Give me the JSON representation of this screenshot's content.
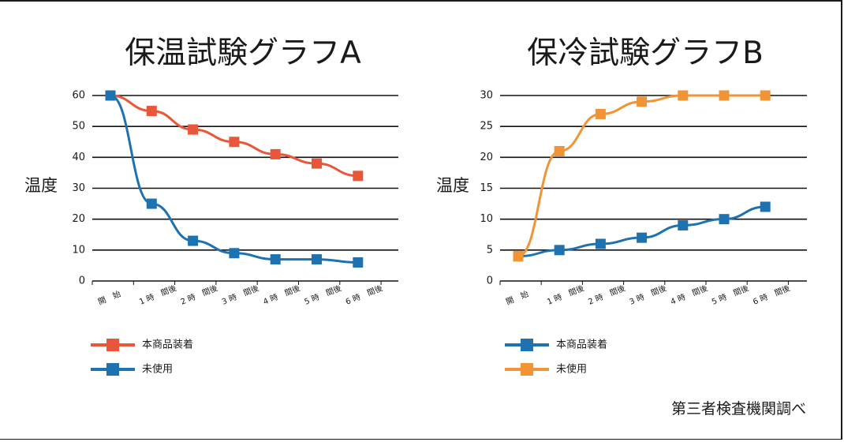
{
  "source_note": "第三者検査機関調べ",
  "chart_data": [
    {
      "type": "line",
      "title": "保温試験グラフA",
      "ylabel": "温度",
      "ylim": [
        0,
        60
      ],
      "yticks": [
        0,
        10,
        20,
        30,
        40,
        50,
        60
      ],
      "categories": [
        "開　始",
        "1 時　間後",
        "2 時　間後",
        "3 時　間後",
        "4 時　間後",
        "5 時　間後",
        "6 時　間後"
      ],
      "grid": true,
      "legend_position": "bottom-left",
      "series": [
        {
          "name": "本商品装着",
          "color": "#e8573a",
          "values": [
            60,
            55,
            49,
            45,
            41,
            38,
            34
          ]
        },
        {
          "name": "未使用",
          "color": "#1f72b0",
          "values": [
            60,
            25,
            13,
            9,
            7,
            7,
            6
          ]
        }
      ]
    },
    {
      "type": "line",
      "title": "保冷試験グラフB",
      "ylabel": "温度",
      "ylim": [
        0,
        30
      ],
      "yticks": [
        0,
        5,
        10,
        15,
        20,
        25,
        30
      ],
      "categories": [
        "開　始",
        "1 時　間後",
        "2 時　間後",
        "3 時　間後",
        "4 時　間後",
        "5 時　間後",
        "6 時　間後"
      ],
      "grid": true,
      "legend_position": "bottom-left",
      "series": [
        {
          "name": "本商品装着",
          "color": "#1f72b0",
          "values": [
            4,
            5,
            6,
            7,
            9,
            10,
            12
          ]
        },
        {
          "name": "未使用",
          "color": "#f19435",
          "values": [
            4,
            21,
            27,
            29,
            30,
            30,
            30
          ]
        }
      ]
    }
  ]
}
